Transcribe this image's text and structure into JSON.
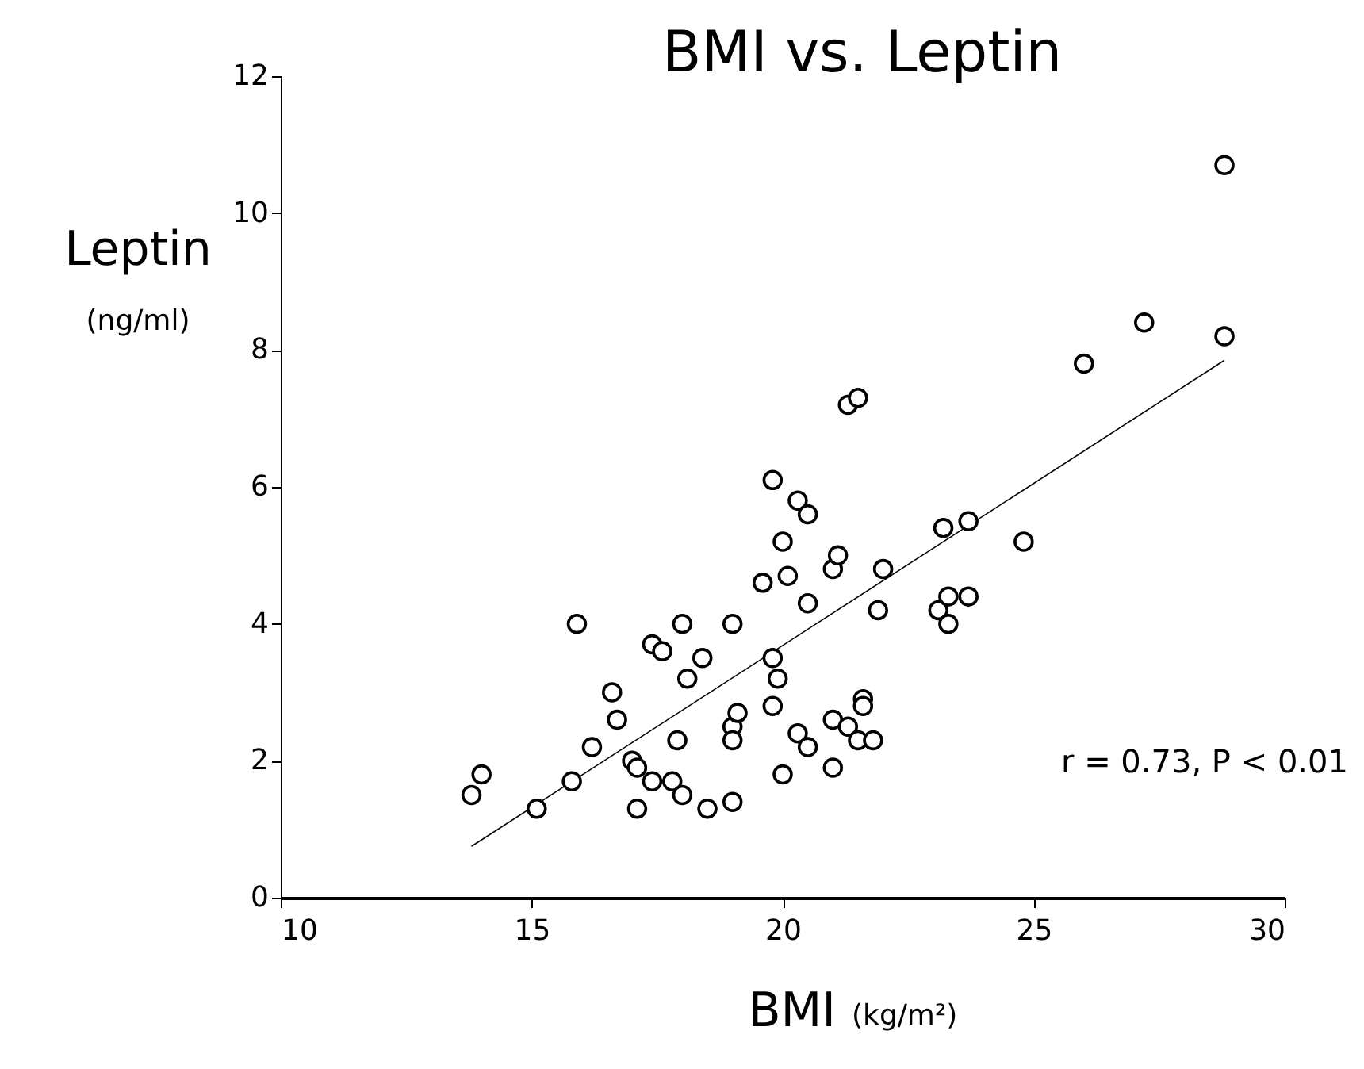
{
  "chart_data": {
    "type": "scatter",
    "title": "BMI vs. Leptin",
    "xlabel": "BMI (kg/m²)",
    "ylabel": "Leptin (ng/ml)",
    "xlim": [
      10,
      30
    ],
    "xticks": [
      10,
      15,
      20,
      25,
      30
    ],
    "ylim": [
      0,
      12
    ],
    "yticks": [
      0,
      2,
      4,
      6,
      8,
      10,
      12
    ],
    "grid": false,
    "annotations": [
      "r = 0.73, P < 0.01"
    ],
    "series": [
      {
        "type": "scatter",
        "marker": "circle",
        "color": "#000000",
        "x": [
          13.8,
          14.0,
          15.1,
          15.8,
          15.9,
          16.2,
          16.6,
          16.7,
          17.0,
          17.1,
          17.1,
          17.4,
          17.4,
          17.6,
          17.8,
          17.9,
          18.0,
          18.0,
          18.1,
          18.4,
          18.5,
          19.0,
          19.0,
          19.0,
          19.0,
          19.1,
          19.6,
          19.8,
          19.8,
          19.8,
          19.9,
          20.0,
          20.0,
          20.1,
          20.3,
          20.3,
          20.5,
          20.5,
          20.5,
          21.0,
          21.0,
          21.0,
          21.1,
          21.3,
          21.3,
          21.5,
          21.5,
          21.6,
          21.6,
          21.8,
          21.9,
          22.0,
          23.1,
          23.2,
          23.3,
          23.3,
          23.7,
          23.7,
          24.8,
          26.0,
          27.2,
          28.8,
          28.8
        ],
        "values": [
          1.5,
          1.8,
          1.3,
          1.7,
          4.0,
          2.2,
          3.0,
          2.6,
          2.0,
          1.9,
          1.3,
          1.7,
          3.7,
          3.6,
          1.7,
          2.3,
          4.0,
          1.5,
          3.2,
          3.5,
          1.3,
          4.0,
          1.4,
          2.5,
          2.3,
          2.7,
          4.6,
          6.1,
          3.5,
          2.8,
          3.2,
          5.2,
          1.8,
          4.7,
          5.8,
          2.4,
          4.3,
          5.6,
          2.2,
          4.8,
          2.6,
          1.9,
          5.0,
          2.5,
          7.2,
          7.3,
          2.3,
          2.9,
          2.8,
          2.3,
          4.2,
          4.8,
          4.2,
          5.4,
          4.4,
          4.0,
          4.4,
          5.5,
          5.2,
          7.8,
          8.4,
          10.7,
          8.2
        ]
      },
      {
        "type": "line",
        "color": "#000000",
        "line_style": "solid",
        "x": [
          13.8,
          28.8
        ],
        "values": [
          0.75,
          7.85
        ]
      }
    ]
  }
}
